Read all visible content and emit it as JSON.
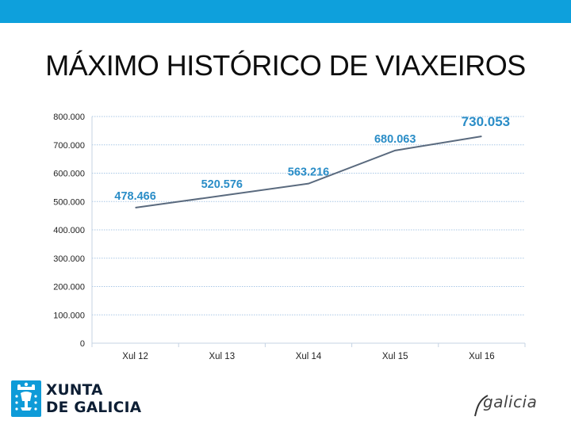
{
  "colors": {
    "topbar": "#0ea0dc",
    "line": "#5a6a7e",
    "labels": "#2a8dc7",
    "grid": "#a9c7e6"
  },
  "slide": {
    "title": "MÁXIMO HISTÓRICO DE VIAXEIROS"
  },
  "chart_data": {
    "type": "line",
    "categories": [
      "Xul 12",
      "Xul 13",
      "Xul 14",
      "Xul 15",
      "Xul 16"
    ],
    "values": [
      478466,
      520576,
      563216,
      680063,
      730053
    ],
    "data_labels": [
      "478.466",
      "520.576",
      "563.216",
      "680.063",
      "730.053"
    ],
    "yticks": [
      "0",
      "100.000",
      "200.000",
      "300.000",
      "400.000",
      "500.000",
      "600.000",
      "700.000",
      "800.000"
    ],
    "ylim": [
      0,
      800000
    ],
    "grid": true,
    "title": "",
    "xlabel": "",
    "ylabel": ""
  },
  "logos": {
    "xunta_line1": "XUNTA",
    "xunta_line2": "DE GALICIA",
    "galicia": "galicia",
    "xunta_icon": "galicia-crest-icon"
  }
}
